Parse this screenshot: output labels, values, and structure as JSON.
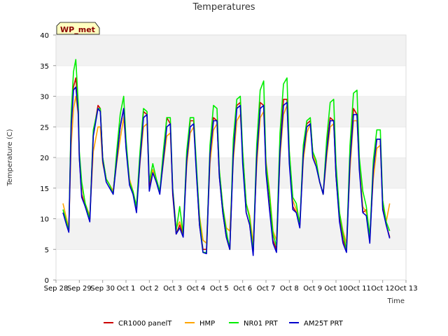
{
  "chart_data": {
    "type": "line",
    "title": "Temperatures",
    "xlabel": "Time",
    "ylabel": "Temperature (C)",
    "ylim": [
      0,
      40
    ],
    "yticks": [
      0,
      5,
      10,
      15,
      20,
      25,
      30,
      35,
      40
    ],
    "xlim": [
      0,
      15
    ],
    "xticks": [
      {
        "value": 0,
        "label": "Sep 28"
      },
      {
        "value": 1,
        "label": "Sep 29"
      },
      {
        "value": 2,
        "label": "Sep 30"
      },
      {
        "value": 3,
        "label": "Oct 1"
      },
      {
        "value": 4,
        "label": "Oct 2"
      },
      {
        "value": 5,
        "label": "Oct 3"
      },
      {
        "value": 6,
        "label": "Oct 4"
      },
      {
        "value": 7,
        "label": "Oct 5"
      },
      {
        "value": 8,
        "label": "Oct 6"
      },
      {
        "value": 9,
        "label": "Oct 7"
      },
      {
        "value": 10,
        "label": "Oct 8"
      },
      {
        "value": 11,
        "label": "Oct 9"
      },
      {
        "value": 12,
        "label": "Oct 10"
      },
      {
        "value": 13,
        "label": "Oct 11"
      },
      {
        "value": 14,
        "label": "Oct 12"
      },
      {
        "value": 15,
        "label": "Oct 13"
      }
    ],
    "grid": true,
    "legend_position": "bottom",
    "annotation": "WP_met",
    "series": [
      {
        "name": "CR1000 panelT",
        "color": "#cc0000",
        "x": [
          0.3,
          0.45,
          0.55,
          0.65,
          0.75,
          0.85,
          0.95,
          1.0,
          1.1,
          1.25,
          1.45,
          1.6,
          1.8,
          1.9,
          2.0,
          2.15,
          2.3,
          2.45,
          2.6,
          2.75,
          2.9,
          3.0,
          3.15,
          3.3,
          3.45,
          3.6,
          3.75,
          3.9,
          4.0,
          4.15,
          4.3,
          4.45,
          4.6,
          4.75,
          4.9,
          5.0,
          5.15,
          5.3,
          5.45,
          5.6,
          5.75,
          5.9,
          6.0,
          6.15,
          6.3,
          6.45,
          6.6,
          6.75,
          6.9,
          7.0,
          7.15,
          7.3,
          7.45,
          7.6,
          7.75,
          7.9,
          8.0,
          8.15,
          8.3,
          8.45,
          8.6,
          8.75,
          8.9,
          9.0,
          9.15,
          9.3,
          9.45,
          9.6,
          9.75,
          9.9,
          10.0,
          10.15,
          10.3,
          10.45,
          10.6,
          10.75,
          10.9,
          11.0,
          11.15,
          11.3,
          11.45,
          11.6,
          11.75,
          11.9,
          12.0,
          12.15,
          12.3,
          12.45,
          12.6,
          12.75,
          12.9,
          13.0,
          13.15,
          13.3,
          13.45,
          13.6,
          13.75,
          13.9,
          14.0,
          14.15,
          14.3
        ],
        "y": [
          11.0,
          9.5,
          8.0,
          26.0,
          31.5,
          33.0,
          28.0,
          20.0,
          14.0,
          12.0,
          10.0,
          24.0,
          28.5,
          28.0,
          20.0,
          16.5,
          15.5,
          14.5,
          20.0,
          25.0,
          28.0,
          22.0,
          16.0,
          14.5,
          11.5,
          20.0,
          27.5,
          27.0,
          15.0,
          18.0,
          16.0,
          14.5,
          20.0,
          26.5,
          25.5,
          14.0,
          7.5,
          9.0,
          7.5,
          20.0,
          26.0,
          26.0,
          19.0,
          9.0,
          5.0,
          5.0,
          21.0,
          26.5,
          26.0,
          17.0,
          11.0,
          7.0,
          5.0,
          21.0,
          28.5,
          29.0,
          20.0,
          11.0,
          9.0,
          4.5,
          20.0,
          29.0,
          28.5,
          18.0,
          12.0,
          6.5,
          5.0,
          22.0,
          29.5,
          29.5,
          20.0,
          12.0,
          11.0,
          9.0,
          21.0,
          25.5,
          26.0,
          21.0,
          19.0,
          16.0,
          14.0,
          22.0,
          26.5,
          26.0,
          17.0,
          10.0,
          6.5,
          5.0,
          20.0,
          28.0,
          27.0,
          19.0,
          11.0,
          11.5,
          6.5,
          18.0,
          23.0,
          23.0,
          12.0,
          9.0,
          7.0
        ]
      },
      {
        "name": "HMP",
        "color": "#ffa500",
        "x": [
          0.3,
          0.45,
          0.55,
          0.65,
          0.75,
          0.85,
          0.95,
          1.0,
          1.1,
          1.25,
          1.45,
          1.6,
          1.8,
          1.9,
          2.0,
          2.15,
          2.3,
          2.45,
          2.6,
          2.75,
          2.9,
          3.0,
          3.15,
          3.3,
          3.45,
          3.6,
          3.75,
          3.9,
          4.0,
          4.15,
          4.3,
          4.45,
          4.6,
          4.75,
          4.9,
          5.0,
          5.15,
          5.3,
          5.45,
          5.6,
          5.75,
          5.9,
          6.0,
          6.15,
          6.3,
          6.45,
          6.6,
          6.75,
          6.9,
          7.0,
          7.15,
          7.3,
          7.45,
          7.6,
          7.75,
          7.9,
          8.0,
          8.15,
          8.3,
          8.45,
          8.6,
          8.75,
          8.9,
          9.0,
          9.15,
          9.3,
          9.45,
          9.6,
          9.75,
          9.9,
          10.0,
          10.15,
          10.3,
          10.45,
          10.6,
          10.75,
          10.9,
          11.0,
          11.15,
          11.3,
          11.45,
          11.6,
          11.75,
          11.9,
          12.0,
          12.15,
          12.3,
          12.45,
          12.6,
          12.75,
          12.9,
          13.0,
          13.15,
          13.3,
          13.45,
          13.6,
          13.75,
          13.9,
          14.0,
          14.15,
          14.3
        ],
        "y": [
          12.5,
          10.0,
          8.5,
          22.0,
          28.0,
          30.0,
          27.0,
          20.0,
          15.5,
          12.5,
          10.5,
          21.0,
          25.0,
          25.0,
          19.0,
          16.5,
          15.5,
          14.5,
          19.0,
          23.0,
          26.5,
          22.0,
          16.5,
          14.5,
          12.0,
          19.0,
          25.0,
          25.5,
          16.0,
          18.0,
          16.0,
          14.5,
          19.0,
          23.5,
          24.0,
          15.0,
          8.5,
          9.5,
          8.0,
          18.5,
          24.0,
          25.0,
          19.0,
          10.5,
          6.5,
          6.0,
          19.0,
          24.5,
          25.5,
          18.0,
          12.0,
          8.5,
          8.0,
          19.5,
          26.0,
          27.0,
          21.0,
          12.5,
          10.5,
          6.0,
          18.5,
          26.5,
          27.5,
          19.5,
          14.5,
          8.0,
          6.5,
          20.0,
          27.0,
          28.5,
          21.0,
          13.0,
          11.5,
          9.5,
          19.5,
          24.0,
          25.5,
          20.5,
          19.0,
          16.0,
          14.0,
          20.0,
          25.0,
          25.5,
          18.0,
          11.0,
          8.0,
          6.0,
          18.0,
          26.0,
          26.0,
          19.0,
          12.0,
          11.0,
          7.5,
          16.5,
          21.5,
          22.0,
          13.0,
          9.5,
          12.5
        ]
      },
      {
        "name": "NR01 PRT",
        "color": "#00ee00",
        "x": [
          0.3,
          0.45,
          0.55,
          0.65,
          0.75,
          0.85,
          0.95,
          1.0,
          1.1,
          1.25,
          1.45,
          1.6,
          1.8,
          1.9,
          2.0,
          2.15,
          2.3,
          2.45,
          2.6,
          2.75,
          2.9,
          3.0,
          3.15,
          3.3,
          3.45,
          3.6,
          3.75,
          3.9,
          4.0,
          4.15,
          4.3,
          4.45,
          4.6,
          4.75,
          4.9,
          5.0,
          5.15,
          5.3,
          5.45,
          5.6,
          5.75,
          5.9,
          6.0,
          6.15,
          6.3,
          6.45,
          6.6,
          6.75,
          6.9,
          7.0,
          7.15,
          7.3,
          7.45,
          7.6,
          7.75,
          7.9,
          8.0,
          8.15,
          8.3,
          8.45,
          8.6,
          8.75,
          8.9,
          9.0,
          9.15,
          9.3,
          9.45,
          9.6,
          9.75,
          9.9,
          10.0,
          10.15,
          10.3,
          10.45,
          10.6,
          10.75,
          10.9,
          11.0,
          11.15,
          11.3,
          11.45,
          11.6,
          11.75,
          11.9,
          12.0,
          12.15,
          12.3,
          12.45,
          12.6,
          12.75,
          12.9,
          13.0,
          13.15,
          13.3,
          13.45,
          13.6,
          13.75,
          13.9,
          14.0,
          14.15,
          14.3
        ],
        "y": [
          11.5,
          9.5,
          8.0,
          27.0,
          34.0,
          36.0,
          29.0,
          21.0,
          16.0,
          12.5,
          10.0,
          24.5,
          28.0,
          28.0,
          20.0,
          16.5,
          15.5,
          14.0,
          21.0,
          27.0,
          30.0,
          23.0,
          16.0,
          14.5,
          12.0,
          21.0,
          28.0,
          27.5,
          16.0,
          19.0,
          16.5,
          14.5,
          21.0,
          26.5,
          26.5,
          15.0,
          8.0,
          12.0,
          7.5,
          21.0,
          26.5,
          26.5,
          20.0,
          10.0,
          4.5,
          4.5,
          22.0,
          28.5,
          28.0,
          18.0,
          12.0,
          8.0,
          5.0,
          23.0,
          29.5,
          30.0,
          21.0,
          12.5,
          10.0,
          4.5,
          22.0,
          31.0,
          32.5,
          19.0,
          14.0,
          7.5,
          5.5,
          24.0,
          32.0,
          33.0,
          21.0,
          13.5,
          12.5,
          9.0,
          22.0,
          26.0,
          26.5,
          21.0,
          19.5,
          16.0,
          14.0,
          23.0,
          29.0,
          29.5,
          19.0,
          11.0,
          7.5,
          5.0,
          22.0,
          30.5,
          31.0,
          20.0,
          14.5,
          12.0,
          7.0,
          19.5,
          24.5,
          24.5,
          13.0,
          9.5,
          8.0
        ]
      },
      {
        "name": "AM25T PRT",
        "color": "#0000cc",
        "x": [
          0.3,
          0.45,
          0.55,
          0.65,
          0.75,
          0.85,
          0.95,
          1.0,
          1.1,
          1.25,
          1.45,
          1.6,
          1.8,
          1.9,
          2.0,
          2.15,
          2.3,
          2.45,
          2.6,
          2.75,
          2.9,
          3.0,
          3.15,
          3.3,
          3.45,
          3.6,
          3.75,
          3.9,
          4.0,
          4.15,
          4.3,
          4.45,
          4.6,
          4.75,
          4.9,
          5.0,
          5.15,
          5.3,
          5.45,
          5.6,
          5.75,
          5.9,
          6.0,
          6.15,
          6.3,
          6.45,
          6.6,
          6.75,
          6.9,
          7.0,
          7.15,
          7.3,
          7.45,
          7.6,
          7.75,
          7.9,
          8.0,
          8.15,
          8.3,
          8.45,
          8.6,
          8.75,
          8.9,
          9.0,
          9.15,
          9.3,
          9.45,
          9.6,
          9.75,
          9.9,
          10.0,
          10.15,
          10.3,
          10.45,
          10.6,
          10.75,
          10.9,
          11.0,
          11.15,
          11.3,
          11.45,
          11.6,
          11.75,
          11.9,
          12.0,
          12.15,
          12.3,
          12.45,
          12.6,
          12.75,
          12.9,
          13.0,
          13.15,
          13.3,
          13.45,
          13.6,
          13.75,
          13.9,
          14.0,
          14.15,
          14.3
        ],
        "y": [
          11.0,
          9.0,
          7.8,
          25.0,
          31.0,
          31.5,
          27.5,
          20.0,
          13.5,
          12.0,
          9.5,
          23.5,
          28.0,
          27.5,
          19.5,
          16.0,
          15.0,
          14.0,
          19.5,
          25.0,
          28.0,
          21.5,
          15.5,
          14.0,
          11.0,
          19.5,
          26.5,
          27.0,
          14.5,
          17.5,
          16.0,
          14.0,
          19.5,
          25.0,
          25.5,
          14.5,
          7.5,
          8.5,
          7.0,
          19.5,
          25.0,
          25.5,
          18.5,
          9.0,
          4.5,
          4.3,
          20.5,
          26.0,
          26.0,
          17.0,
          11.0,
          7.0,
          5.0,
          20.5,
          28.0,
          28.5,
          19.0,
          11.0,
          9.0,
          4.0,
          20.0,
          28.0,
          28.5,
          17.5,
          11.5,
          6.0,
          4.5,
          21.0,
          28.5,
          29.0,
          19.0,
          11.5,
          11.0,
          8.5,
          20.5,
          25.0,
          25.5,
          20.0,
          18.5,
          16.0,
          14.0,
          21.0,
          26.0,
          26.0,
          17.0,
          9.5,
          6.0,
          4.5,
          19.5,
          27.0,
          27.0,
          18.0,
          11.0,
          10.5,
          6.0,
          18.0,
          23.0,
          23.0,
          11.5,
          9.0,
          6.8
        ]
      }
    ]
  }
}
